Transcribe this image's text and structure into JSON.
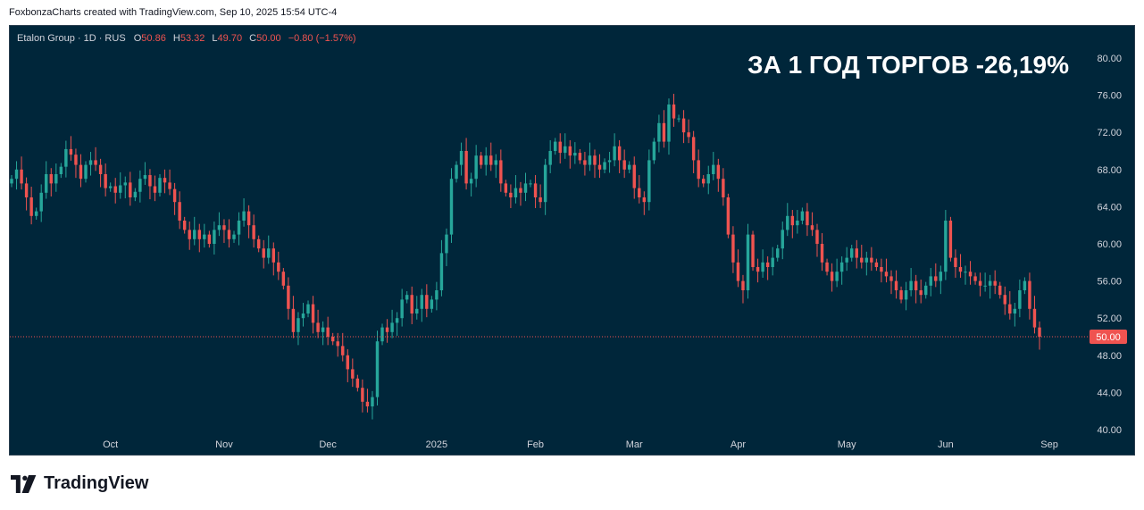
{
  "credit_line": "FoxbonzaCharts created with TradingView.com, Sep 10, 2025 15:54 UTC-4",
  "legend": {
    "symbol": "Etalon Group · 1D · RUS",
    "o_label": "O",
    "o_value": "50.86",
    "h_label": "H",
    "h_value": "53.32",
    "l_label": "L",
    "l_value": "49.70",
    "c_label": "C",
    "c_value": "50.00",
    "change": "−0.80 (−1.57%)"
  },
  "headline": "ЗА 1 ГОД ТОРГОВ -26,19%",
  "last_price_label": "50.00",
  "brand_name": "TradingView",
  "colors": {
    "background": "#00263a",
    "up": "#26a69a",
    "down": "#ef5350",
    "text": "#d1d4dc",
    "last_price_line": "#ef5350"
  },
  "chart_data": {
    "type": "candlestick",
    "interval": "1D",
    "ylim": [
      38,
      82
    ],
    "y_ticks": [
      "80.00",
      "76.00",
      "72.00",
      "68.00",
      "64.00",
      "60.00",
      "56.00",
      "52.00",
      "48.00",
      "44.00",
      "40.00"
    ],
    "x_ticks": [
      {
        "label": "Oct",
        "index": 20
      },
      {
        "label": "Nov",
        "index": 43
      },
      {
        "label": "Dec",
        "index": 64
      },
      {
        "label": "2025",
        "index": 86
      },
      {
        "label": "Feb",
        "index": 106
      },
      {
        "label": "Mar",
        "index": 126
      },
      {
        "label": "Apr",
        "index": 147
      },
      {
        "label": "May",
        "index": 169
      },
      {
        "label": "Jun",
        "index": 189
      },
      {
        "label": "Sep",
        "index": 210
      }
    ],
    "last_price": 50.0,
    "closes": [
      67.0,
      68.0,
      66.5,
      65.0,
      63.0,
      63.5,
      65.5,
      67.5,
      66.5,
      67.5,
      68.3,
      70.2,
      69.6,
      68.5,
      67.0,
      68.5,
      69.0,
      68.5,
      67.5,
      66.0,
      66.2,
      65.5,
      66.3,
      66.6,
      65.0,
      65.6,
      67.0,
      67.4,
      66.2,
      65.5,
      67.1,
      66.6,
      65.9,
      64.5,
      62.5,
      61.5,
      60.5,
      61.5,
      60.5,
      61.0,
      60.0,
      61.5,
      62.0,
      61.5,
      60.5,
      61.0,
      62.5,
      63.5,
      62.0,
      60.5,
      59.5,
      58.5,
      59.5,
      58.0,
      57.0,
      55.5,
      53.0,
      50.5,
      52.0,
      52.5,
      53.5,
      51.5,
      50.5,
      51.0,
      50.0,
      49.5,
      49.0,
      48.0,
      46.5,
      45.5,
      44.5,
      43.0,
      42.5,
      43.5,
      49.5,
      51.0,
      50.5,
      51.5,
      52.0,
      54.0,
      54.5,
      52.5,
      53.0,
      54.5,
      53.0,
      54.0,
      55.0,
      59.0,
      61.0,
      67.0,
      68.5,
      70.0,
      66.5,
      67.0,
      69.5,
      68.5,
      69.5,
      68.5,
      69.0,
      66.5,
      65.5,
      65.0,
      66.0,
      65.5,
      66.5,
      66.5,
      65.0,
      64.5,
      68.5,
      70.0,
      71.0,
      69.8,
      70.5,
      69.5,
      69.8,
      69.0,
      68.5,
      69.5,
      68.5,
      68.0,
      68.8,
      69.0,
      70.5,
      69.0,
      68.0,
      68.5,
      66.0,
      65.0,
      64.5,
      69.0,
      71.0,
      73.0,
      71.0,
      75.0,
      73.5,
      73.5,
      72.0,
      71.5,
      69.0,
      67.0,
      66.5,
      67.5,
      68.5,
      67.0,
      65.0,
      61.0,
      58.0,
      56.0,
      55.0,
      61.0,
      57.5,
      57.0,
      58.0,
      57.5,
      58.5,
      59.5,
      61.5,
      63.0,
      62.0,
      62.5,
      63.5,
      62.0,
      61.5,
      60.0,
      58.0,
      57.0,
      56.0,
      57.0,
      58.0,
      58.5,
      59.5,
      58.5,
      58.0,
      58.5,
      58.0,
      57.5,
      57.0,
      56.5,
      56.0,
      55.0,
      54.0,
      55.0,
      56.0,
      55.0,
      54.5,
      55.5,
      56.5,
      56.0,
      57.0,
      62.5,
      58.5,
      57.5,
      57.0,
      57.0,
      56.5,
      56.0,
      55.5,
      55.5,
      56.0,
      55.5,
      54.5,
      53.5,
      52.5,
      53.0,
      55.0,
      56.0,
      53.0,
      51.0,
      50.0
    ]
  }
}
